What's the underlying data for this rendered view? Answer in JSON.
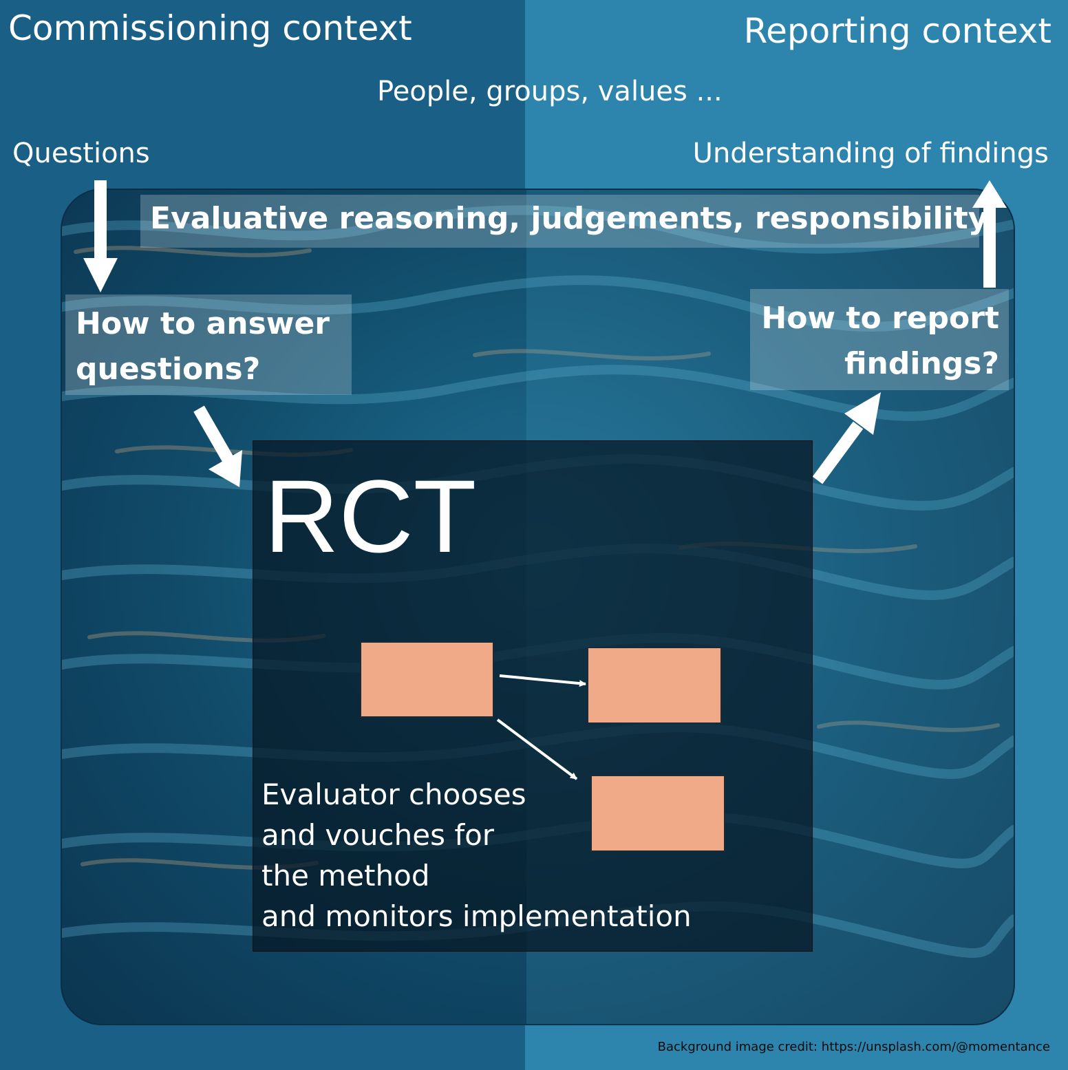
{
  "contexts": {
    "commissioning": "Commissioning context",
    "reporting": "Reporting context"
  },
  "people_label": "People, groups, values ...",
  "questions_label": "Questions",
  "understanding_label": "Understanding of findings",
  "evaluative_label": "Evaluative reasoning, judgements, responsibility",
  "answer_label": "How to answer questions?",
  "report_label": "How to report findings?",
  "rct_label": "RCT",
  "evaluator_text": "Evaluator chooses\nand vouches for\nthe method\nand monitors implementation",
  "credit": "Background image credit: https://unsplash.com/@momentance",
  "colors": {
    "left_panel": "#195f86",
    "right_panel": "#2d85ad",
    "node_fill": "#f0aa87",
    "rct_box": "#06161e"
  }
}
